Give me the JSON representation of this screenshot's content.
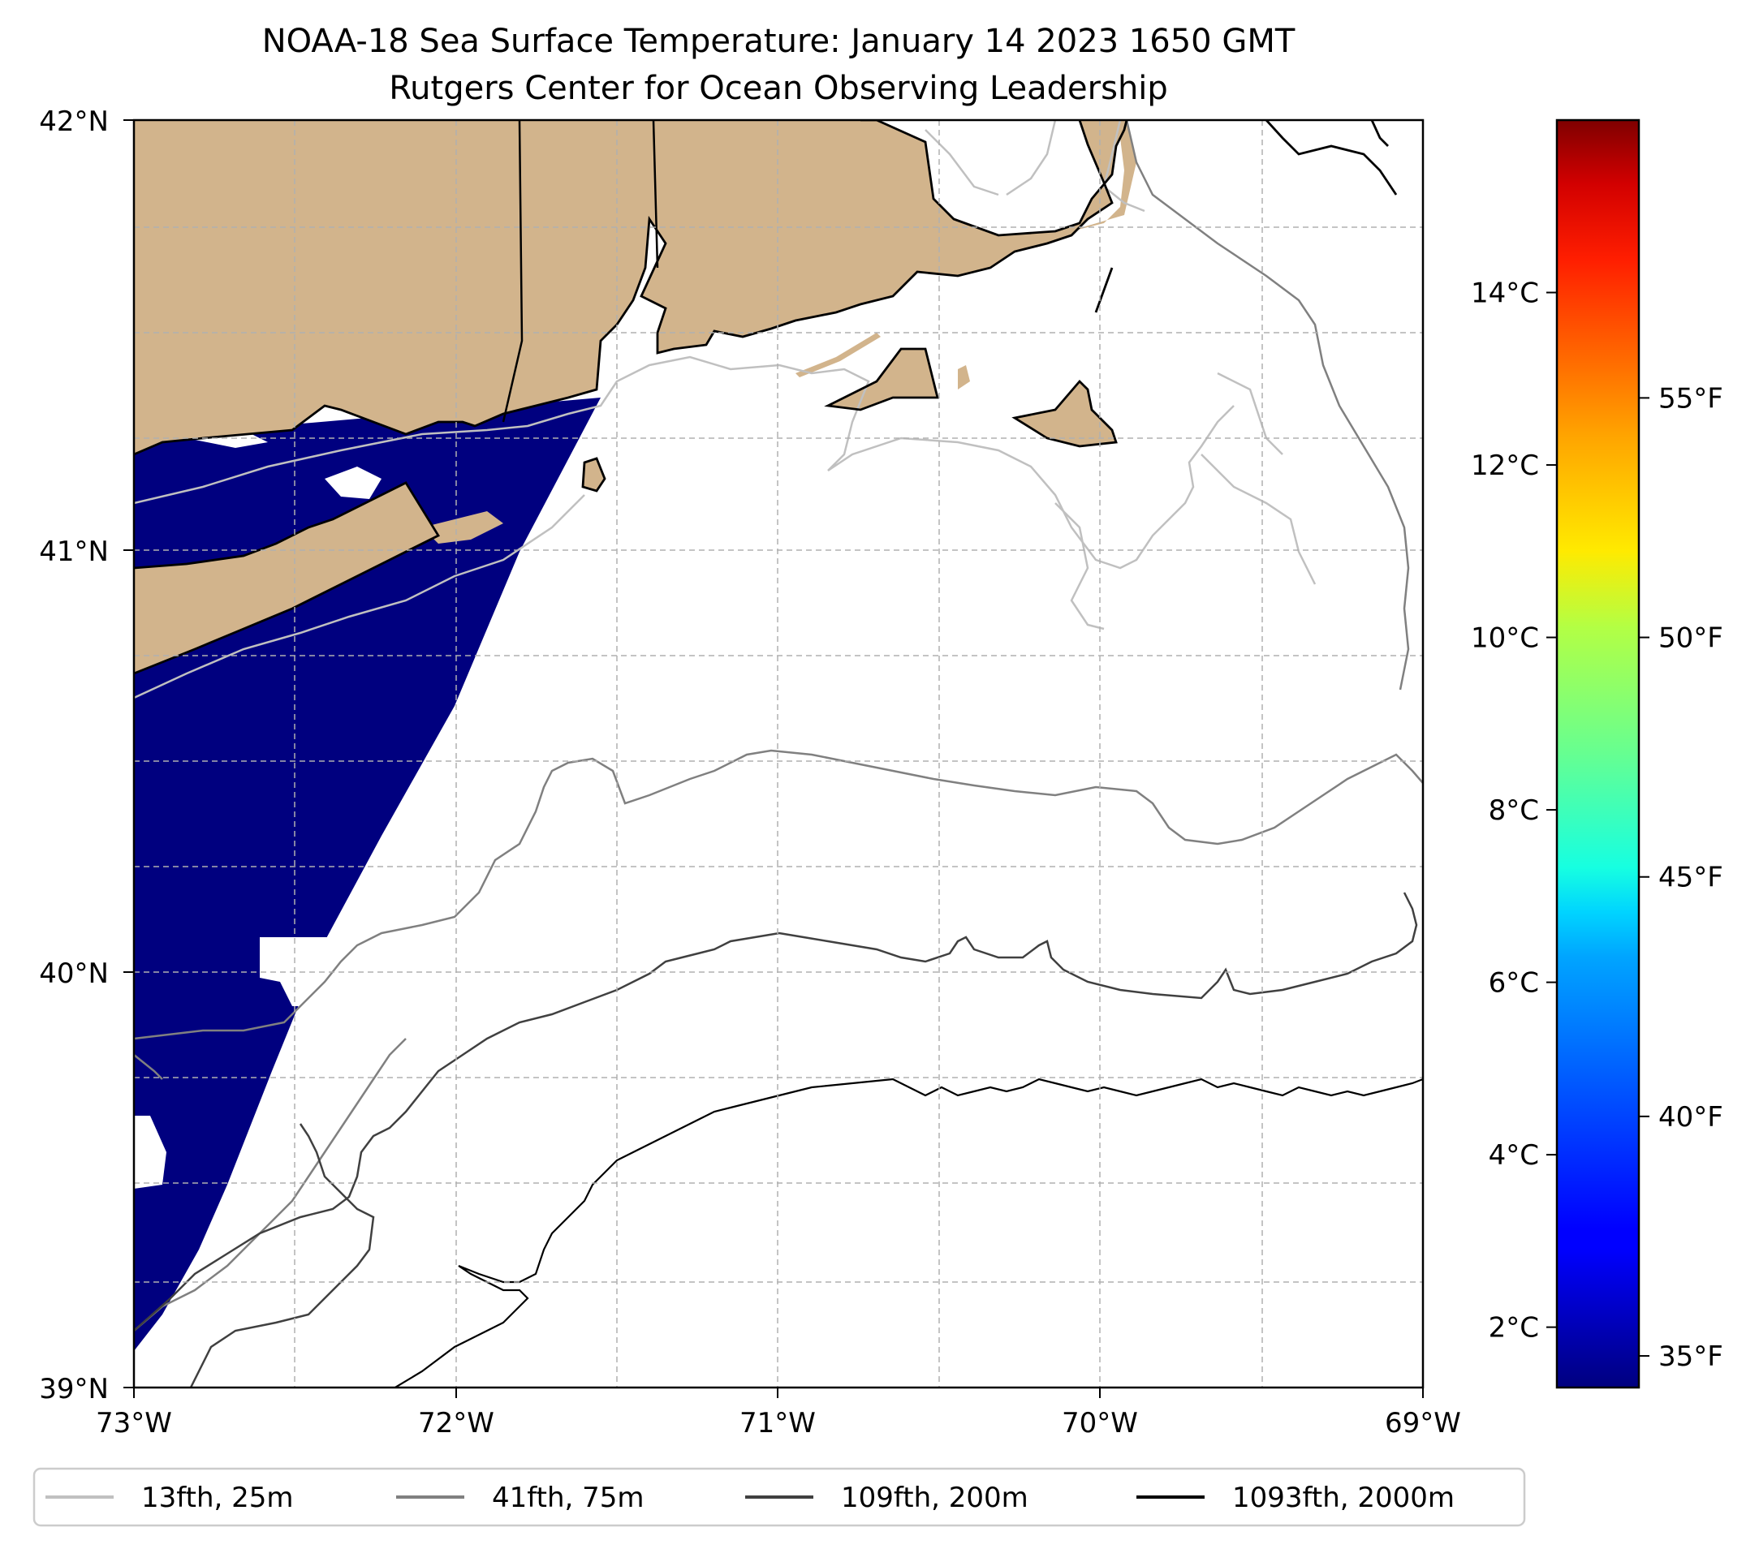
{
  "title": {
    "line1": "NOAA-18 Sea Surface Temperature: January 14 2023 1650 GMT",
    "line2": "Rutgers Center for Ocean Observing Leadership"
  },
  "map": {
    "lat_ticks": [
      "42°N",
      "41°N",
      "40°N",
      "39°N"
    ],
    "lon_ticks": [
      "73°W",
      "72°W",
      "71°W",
      "70°W",
      "69°W"
    ],
    "extent": {
      "lon_min": -73,
      "lon_max": -69,
      "lat_min": 39,
      "lat_max": 42
    },
    "colors": {
      "land": "#d2b48c",
      "cold_sst": "#00007f",
      "grid": "#b0b0b0"
    }
  },
  "colorbar": {
    "celsius_ticks": [
      "14°C",
      "12°C",
      "10°C",
      "8°C",
      "6°C",
      "4°C",
      "2°C"
    ],
    "fahrenheit_ticks": [
      "55°F",
      "50°F",
      "45°F",
      "40°F",
      "35°F"
    ],
    "celsius_values": [
      14,
      12,
      10,
      8,
      6,
      4,
      2
    ],
    "fahrenheit_values": [
      55,
      50,
      45,
      40,
      35
    ],
    "range_c": [
      1.3,
      16
    ],
    "colormap": "jet"
  },
  "legend": {
    "items": [
      {
        "label": "13fth, 25m",
        "color": "#c0c0c0"
      },
      {
        "label": "41fth, 75m",
        "color": "#808080"
      },
      {
        "label": "109fth, 200m",
        "color": "#404040"
      },
      {
        "label": "1093fth, 2000m",
        "color": "#000000"
      }
    ]
  }
}
